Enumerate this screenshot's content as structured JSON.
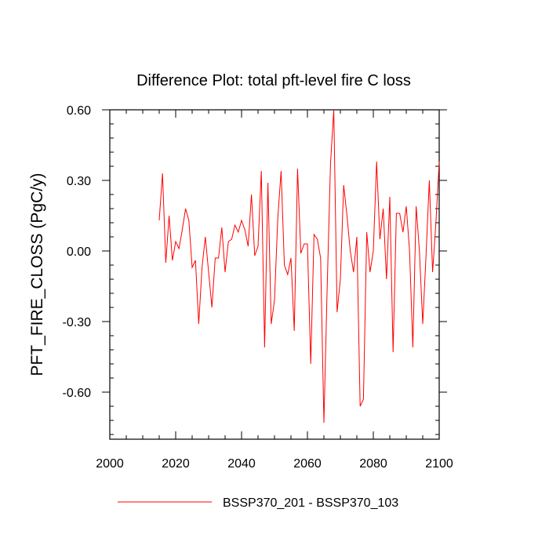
{
  "chart_data": {
    "type": "line",
    "title": "Difference Plot: total pft-level fire C loss",
    "xlabel": "",
    "ylabel": "PFT_FIRE_CLOSS  (PgC/y)",
    "xlim": [
      2000,
      2100
    ],
    "ylim": [
      -0.8,
      0.6
    ],
    "xticks": [
      2000,
      2020,
      2040,
      2060,
      2080,
      2100
    ],
    "xtick_labels": [
      "2000",
      "2020",
      "2040",
      "2060",
      "2080",
      "2100"
    ],
    "yticks": [
      0.6,
      0.3,
      0.0,
      -0.3,
      -0.6
    ],
    "ytick_labels": [
      "0.60",
      "0.30",
      "0.00",
      "-0.30",
      "-0.60"
    ],
    "grid": false,
    "legend_position": "bottom",
    "series": [
      {
        "name": "BSSP370_201 - BSSP370_103",
        "color": "#ff0000",
        "x": [
          2015,
          2016,
          2017,
          2018,
          2019,
          2020,
          2021,
          2022,
          2023,
          2024,
          2025,
          2026,
          2027,
          2028,
          2029,
          2030,
          2031,
          2032,
          2033,
          2034,
          2035,
          2036,
          2037,
          2038,
          2039,
          2040,
          2041,
          2042,
          2043,
          2044,
          2045,
          2046,
          2047,
          2048,
          2049,
          2050,
          2051,
          2052,
          2053,
          2054,
          2055,
          2056,
          2057,
          2058,
          2059,
          2060,
          2061,
          2062,
          2063,
          2064,
          2065,
          2066,
          2067,
          2068,
          2069,
          2070,
          2071,
          2072,
          2073,
          2074,
          2075,
          2076,
          2077,
          2078,
          2079,
          2080,
          2081,
          2082,
          2083,
          2084,
          2085,
          2086,
          2087,
          2088,
          2089,
          2090,
          2091,
          2092,
          2093,
          2094,
          2095,
          2096,
          2097,
          2098,
          2099,
          2100
        ],
        "y": [
          0.13,
          0.33,
          -0.05,
          0.15,
          -0.04,
          0.04,
          0.01,
          0.09,
          0.18,
          0.13,
          -0.07,
          -0.04,
          -0.31,
          -0.07,
          0.06,
          -0.09,
          -0.24,
          -0.03,
          -0.03,
          0.1,
          -0.09,
          0.04,
          0.05,
          0.11,
          0.08,
          0.13,
          0.09,
          0.02,
          0.24,
          -0.02,
          0.02,
          0.34,
          -0.41,
          0.29,
          -0.31,
          -0.21,
          0.14,
          0.34,
          -0.06,
          -0.1,
          -0.03,
          -0.34,
          0.35,
          -0.01,
          0.03,
          0.03,
          -0.48,
          0.07,
          0.05,
          -0.03,
          -0.73,
          -0.15,
          0.37,
          0.6,
          -0.26,
          -0.12,
          0.28,
          0.15,
          0.0,
          -0.09,
          0.06,
          -0.66,
          -0.63,
          0.08,
          -0.09,
          0.0,
          0.38,
          0.05,
          0.18,
          -0.12,
          0.23,
          -0.43,
          0.16,
          0.16,
          0.08,
          0.19,
          0.0,
          -0.41,
          0.19,
          0.0,
          -0.31,
          -0.02,
          0.3,
          -0.09,
          0.12,
          0.38
        ]
      }
    ]
  }
}
